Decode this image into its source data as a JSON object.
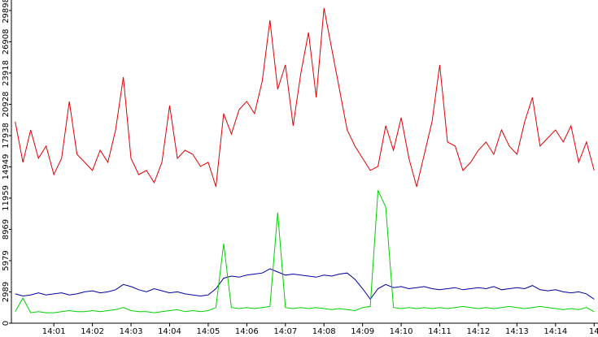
{
  "chart_data": {
    "type": "line",
    "x": [
      0,
      0.2,
      0.4,
      0.6,
      0.8,
      1,
      1.2,
      1.4,
      1.6,
      1.8,
      2,
      2.2,
      2.4,
      2.6,
      2.8,
      3,
      3.2,
      3.4,
      3.6,
      3.8,
      4,
      4.2,
      4.4,
      4.6,
      4.8,
      5,
      5.2,
      5.4,
      5.6,
      5.8,
      6,
      6.2,
      6.4,
      6.6,
      6.8,
      7,
      7.2,
      7.4,
      7.6,
      7.8,
      8,
      8.2,
      8.4,
      8.6,
      8.8,
      9,
      9.2,
      9.4,
      9.6,
      9.8,
      10,
      10.2,
      10.4,
      10.6,
      10.8,
      11,
      11.2,
      11.4,
      11.6,
      11.8,
      12,
      12.2,
      12.4,
      12.6,
      12.8,
      13,
      13.2,
      13.4,
      13.6,
      13.8,
      14,
      14.2,
      14.4,
      14.6,
      14.8,
      15
    ],
    "series": [
      {
        "color": "#e00000",
        "values": [
          19260,
          15380,
          18480,
          15760,
          16930,
          14210,
          15760,
          21200,
          16150,
          15380,
          14600,
          16540,
          15380,
          18480,
          23530,
          15760,
          14210,
          14600,
          13440,
          15380,
          20810,
          15760,
          16540,
          16150,
          14990,
          15380,
          13050,
          20040,
          18090,
          20420,
          21200,
          20040,
          23140,
          28970,
          22370,
          24700,
          18870,
          23920,
          27800,
          21590,
          30130,
          26250,
          22370,
          18480,
          16930,
          15760,
          14600,
          14990,
          18870,
          16540,
          19650,
          15760,
          13050,
          16150,
          19260,
          24700,
          17320,
          16930,
          14600,
          15380,
          16540,
          17320,
          16150,
          18480,
          16930,
          16150,
          19260,
          21590,
          16930,
          17710,
          18480,
          17320,
          18870,
          15380,
          17320,
          14600
        ]
      },
      {
        "color": "#0000a0",
        "values": [
          2800,
          2600,
          2700,
          2900,
          2700,
          2800,
          2900,
          2700,
          2800,
          3000,
          3100,
          2900,
          3000,
          3200,
          3700,
          3500,
          3200,
          3000,
          3300,
          3100,
          2900,
          3000,
          2800,
          2700,
          2600,
          2700,
          3300,
          4300,
          4500,
          4400,
          4600,
          4700,
          4800,
          5200,
          4900,
          4600,
          4700,
          4600,
          4500,
          4400,
          4600,
          4500,
          4700,
          4800,
          4200,
          3300,
          2300,
          3300,
          3700,
          3400,
          3500,
          3300,
          3400,
          3500,
          3300,
          3200,
          3300,
          3400,
          3200,
          3300,
          3400,
          3300,
          3500,
          3200,
          3300,
          3400,
          3300,
          3600,
          3200,
          3100,
          3200,
          3000,
          2900,
          3000,
          2800,
          2300
        ]
      },
      {
        "color": "#00d000",
        "values": [
          1100,
          2400,
          1000,
          1100,
          1000,
          1000,
          1100,
          1200,
          1100,
          1100,
          1200,
          1100,
          1200,
          1300,
          1500,
          1200,
          1100,
          1100,
          1000,
          1100,
          1200,
          1300,
          1100,
          1200,
          1100,
          1200,
          1500,
          7600,
          1500,
          1400,
          1500,
          1400,
          1500,
          1600,
          10600,
          1500,
          1400,
          1500,
          1400,
          1500,
          1400,
          1300,
          1400,
          1300,
          1200,
          1500,
          1600,
          12700,
          11100,
          1500,
          1400,
          1500,
          1400,
          1500,
          1400,
          1500,
          1400,
          1500,
          1600,
          1500,
          1400,
          1500,
          1400,
          1500,
          1600,
          1500,
          1400,
          1500,
          1600,
          1500,
          1400,
          1300,
          1400,
          1300,
          1500,
          1100
        ]
      }
    ],
    "xlim": [
      -0.1,
      15.1
    ],
    "ylim": [
      0,
      30900
    ],
    "xticks": [
      {
        "value": 1,
        "label": "14:01"
      },
      {
        "value": 2,
        "label": "14:02"
      },
      {
        "value": 3,
        "label": "14:03"
      },
      {
        "value": 4,
        "label": "14:04"
      },
      {
        "value": 5,
        "label": "14:05"
      },
      {
        "value": 6,
        "label": "14:06"
      },
      {
        "value": 7,
        "label": "14:07"
      },
      {
        "value": 8,
        "label": "14:08"
      },
      {
        "value": 9,
        "label": "14:09"
      },
      {
        "value": 10,
        "label": "14:10"
      },
      {
        "value": 11,
        "label": "14:11"
      },
      {
        "value": 12,
        "label": "14:12"
      },
      {
        "value": 13,
        "label": "14:13"
      },
      {
        "value": 14,
        "label": "14:14"
      },
      {
        "value": 15,
        "label": "14"
      }
    ],
    "yticks": [
      0,
      2989,
      5979,
      8969,
      11959,
      14949,
      17938,
      20928,
      23918,
      26908,
      29898
    ]
  }
}
